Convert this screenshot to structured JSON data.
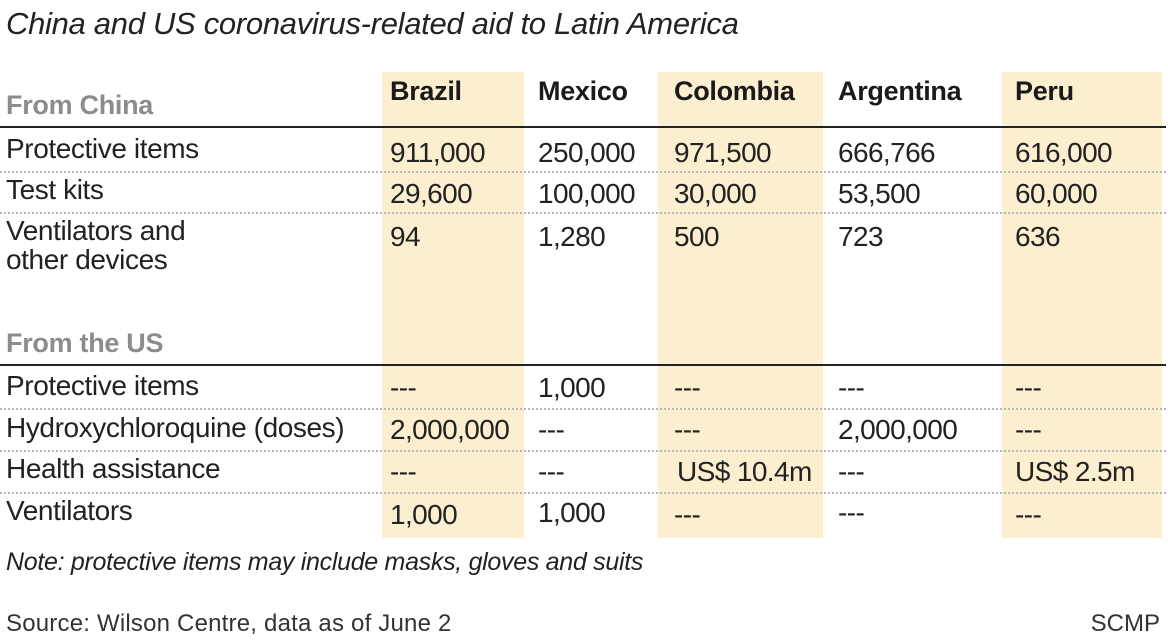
{
  "title": "China and US coronavirus-related aid to Latin America",
  "columns": [
    "Brazil",
    "Mexico",
    "Colombia",
    "Argentina",
    "Peru"
  ],
  "highlight_color": "#fcefd0",
  "sections": [
    {
      "label": "From China",
      "rows": [
        {
          "label": "Protective items",
          "values": [
            "911,000",
            "250,000",
            "971,500",
            "666,766",
            "616,000"
          ]
        },
        {
          "label": "Test kits",
          "values": [
            "29,600",
            "100,000",
            "30,000",
            "53,500",
            "60,000"
          ]
        },
        {
          "label_lines": [
            "Ventilators and",
            "other devices"
          ],
          "values": [
            "94",
            "1,280",
            "500",
            "723",
            "636"
          ]
        }
      ]
    },
    {
      "label": "From the US",
      "rows": [
        {
          "label": "Protective items",
          "values": [
            "---",
            "1,000",
            "---",
            "---",
            "---"
          ]
        },
        {
          "label": "Hydroxychloroquine (doses)",
          "values": [
            "2,000,000",
            "---",
            "---",
            "2,000,000",
            "---"
          ]
        },
        {
          "label": "Health assistance",
          "values": [
            "---",
            "---",
            "US$ 10.4m",
            "---",
            "US$ 2.5m"
          ]
        },
        {
          "label": "Ventilators",
          "values": [
            "1,000",
            "1,000",
            "---",
            "---",
            "---"
          ]
        }
      ]
    }
  ],
  "note": "Note: protective items may include masks, gloves and suits",
  "source": "Source: Wilson Centre, data as of June 2",
  "credit": "SCMP"
}
